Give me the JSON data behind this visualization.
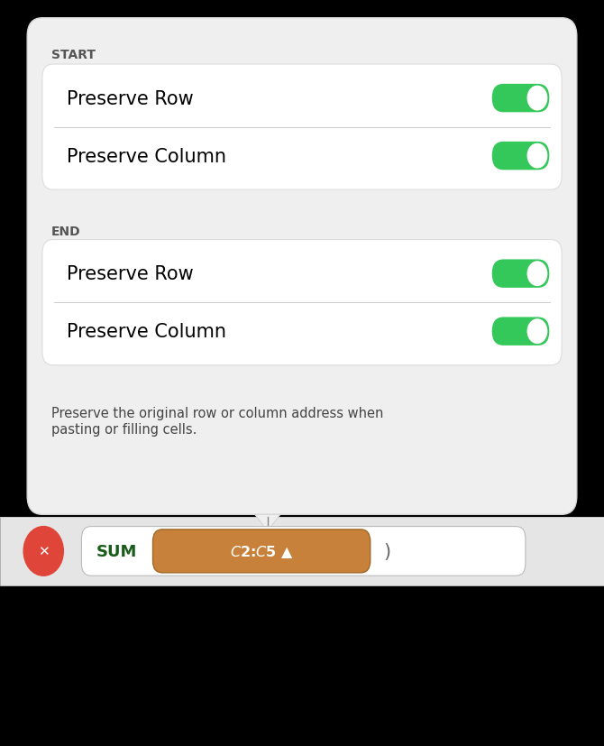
{
  "bg_color": "#000000",
  "panel_bg": "#efefef",
  "card_bg": "#ffffff",
  "section_label_color": "#555555",
  "toggle_on_color": "#34c759",
  "toggle_knob_color": "#ffffff",
  "row_label_color": "#000000",
  "divider_color": "#cccccc",
  "start_label": "START",
  "end_label": "END",
  "row1_text": "Preserve Row",
  "row2_text": "Preserve Column",
  "footer_text": "Preserve the original row or column address when\npasting or filling cells.",
  "footer_color": "#444444",
  "x_btn_color": "#e0453a",
  "sum_text": "SUM",
  "pill_bg": "#c8813a",
  "pill_text": "$C$2:$C$5 ▲",
  "pill_text_color": "#ffffff",
  "sum_text_color": "#1a5c1a",
  "formula_bar_bg": "#ffffff",
  "callout_line_color": "#888888"
}
